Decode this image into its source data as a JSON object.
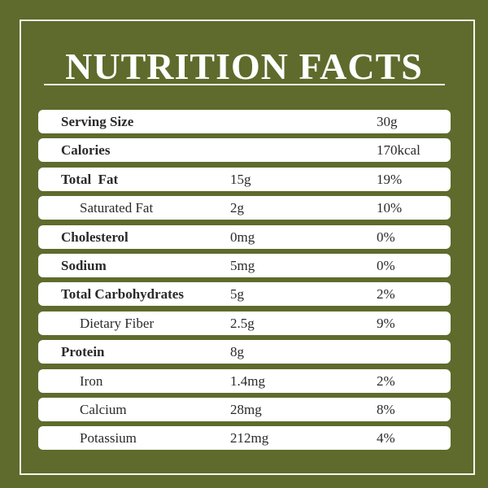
{
  "title": "NUTRITION FACTS",
  "rows": [
    {
      "name": "Serving Size",
      "amount": "",
      "dv": "30g"
    },
    {
      "name": "Calories",
      "amount": "",
      "dv": "170kcal"
    },
    {
      "name": "Total  Fat",
      "amount": "15g",
      "dv": "19%"
    },
    {
      "name": "Saturated Fat",
      "amount": "2g",
      "dv": "10%"
    },
    {
      "name": "Cholesterol",
      "amount": "0mg",
      "dv": "0%"
    },
    {
      "name": "Sodium",
      "amount": "5mg",
      "dv": "0%"
    },
    {
      "name": "Total Carbohydrates",
      "amount": "5g",
      "dv": "2%"
    },
    {
      "name": "Dietary Fiber",
      "amount": "2.5g",
      "dv": "9%"
    },
    {
      "name": "Protein",
      "amount": "8g",
      "dv": ""
    },
    {
      "name": "Iron",
      "amount": "1.4mg",
      "dv": "2%"
    },
    {
      "name": "Calcium",
      "amount": "28mg",
      "dv": "8%"
    },
    {
      "name": "Potassium",
      "amount": "212mg",
      "dv": "4%"
    }
  ]
}
